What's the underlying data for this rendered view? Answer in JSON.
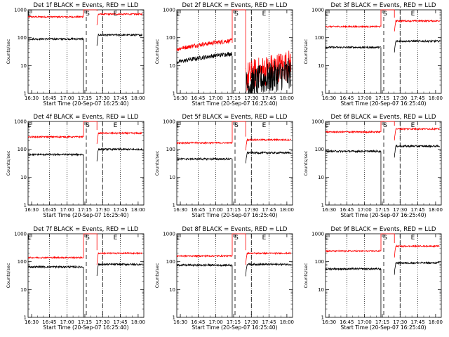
{
  "chart_data": {
    "type": "line",
    "layout": "3x3 grid",
    "common": {
      "xlabel": "Start Time (20-Sep-07 16:25:40)",
      "ylabel": "Counts/sec",
      "y_scale": "log",
      "ylim": [
        1,
        1000
      ],
      "y_ticks": [
        1,
        10,
        100,
        1000
      ],
      "y_tick_labels": [
        "1",
        "10",
        "100",
        "1000"
      ],
      "xlim": [
        16.45,
        18.08
      ],
      "x_ticks": [
        16.5,
        16.75,
        17.0,
        17.25,
        17.5,
        17.75,
        18.0
      ],
      "x_tick_labels": [
        "16:30",
        "16:45",
        "17:00",
        "17:15",
        "17:30",
        "17:45",
        "18:00"
      ],
      "dotted_lines": [
        16.75,
        17.0,
        17.5,
        17.75
      ],
      "dashed_lines": [
        17.27,
        17.5
      ],
      "solid_line": 17.23,
      "markers": [
        {
          "label": "E",
          "x": 16.47
        },
        {
          "label": "S",
          "x": 17.29
        },
        {
          "label": "E",
          "x": 17.68
        }
      ],
      "gap": [
        17.23,
        17.42
      ],
      "series_colors": {
        "events": "#000000",
        "lld": "#ff0000"
      }
    },
    "panels": [
      {
        "title": "Det 1f BLACK = Events, RED = LLD",
        "events_before": 90,
        "events_after": 125,
        "lld_before": 560,
        "lld_after": 700,
        "noisy": false
      },
      {
        "title": "Det 2f BLACK = Events, RED = LLD",
        "events_before": 22,
        "events_after": 3,
        "lld_before": 65,
        "lld_after": 6,
        "noisy": true
      },
      {
        "title": "Det 3f BLACK = Events, RED = LLD",
        "events_before": 45,
        "events_after": 75,
        "lld_before": 250,
        "lld_after": 400,
        "noisy": false
      },
      {
        "title": "Det 4f BLACK = Events, RED = LLD",
        "events_before": 65,
        "events_after": 100,
        "lld_before": 280,
        "lld_after": 380,
        "noisy": false
      },
      {
        "title": "Det 5f BLACK = Events, RED = LLD",
        "events_before": 45,
        "events_after": 75,
        "lld_before": 170,
        "lld_after": 220,
        "noisy": false
      },
      {
        "title": "Det 6f BLACK = Events, RED = LLD",
        "events_before": 85,
        "events_after": 130,
        "lld_before": 420,
        "lld_after": 540,
        "noisy": false
      },
      {
        "title": "Det 7f BLACK = Events, RED = LLD",
        "events_before": 65,
        "events_after": 80,
        "lld_before": 140,
        "lld_after": 200,
        "noisy": false
      },
      {
        "title": "Det 8f BLACK = Events, RED = LLD",
        "events_before": 75,
        "events_after": 80,
        "lld_before": 160,
        "lld_after": 200,
        "noisy": false
      },
      {
        "title": "Det 9f BLACK = Events, RED = LLD",
        "events_before": 55,
        "events_after": 90,
        "lld_before": 240,
        "lld_after": 360,
        "noisy": false
      }
    ]
  }
}
